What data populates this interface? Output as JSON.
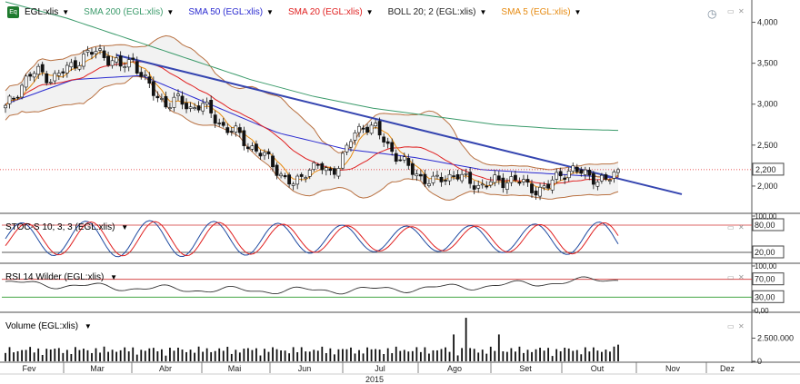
{
  "header": {
    "symbol": "EGL:xlis",
    "icon_text": "Eq",
    "indicators": [
      {
        "label": "SMA 200 (EGL:xlis)",
        "color": "#3a9a6a"
      },
      {
        "label": "SMA 50 (EGL:xlis)",
        "color": "#2a2ad0"
      },
      {
        "label": "SMA 20 (EGL:xlis)",
        "color": "#e02020"
      },
      {
        "label": "BOLL 20; 2 (EGL:xlis)",
        "color": "#222222"
      },
      {
        "label": "SMA 5 (EGL:xlis)",
        "color": "#e68a10"
      }
    ]
  },
  "panels": {
    "stoch_label": "STOC-S 10; 3; 3 (EGL:xlis)",
    "rsi_label": "RSI 14 Wilder (EGL:xlis)",
    "volume_label": "Volume (EGL:xlis)"
  },
  "chart_data": [
    {
      "type": "candlestick",
      "title": "EGL:xlis",
      "year_label": "2015",
      "x_months": [
        "Fev",
        "Mar",
        "Abr",
        "Mai",
        "Jun",
        "Jul",
        "Ago",
        "Set",
        "Out",
        "Nov",
        "Dez"
      ],
      "yticks": [
        2000,
        2500,
        3000,
        3500,
        4000
      ],
      "ytick_labels": [
        "2,000",
        "2,500",
        "3,000",
        "3,500",
        "4,000"
      ],
      "ylim": [
        1700,
        4250
      ],
      "last_price": 2200,
      "last_price_label": "2,200",
      "close_series_approx": [
        {
          "month": "Fev",
          "values": [
            2950,
            3150,
            3350,
            3400,
            3300,
            3400
          ]
        },
        {
          "month": "Mar",
          "values": [
            3500,
            3600,
            3650,
            3550,
            3450,
            3550
          ]
        },
        {
          "month": "Abr",
          "values": [
            3300,
            3100,
            3000,
            3050,
            2950,
            3000
          ]
        },
        {
          "month": "Mai",
          "values": [
            2850,
            2700,
            2650,
            2500,
            2400,
            2300
          ]
        },
        {
          "month": "Jun",
          "values": [
            2100,
            2000,
            2200,
            2250,
            2150,
            2300
          ]
        },
        {
          "month": "Jul",
          "values": [
            2600,
            2750,
            2700,
            2500,
            2350,
            2200
          ]
        },
        {
          "month": "Ago",
          "values": [
            2100,
            2050,
            2100,
            2150,
            2050,
            2000
          ]
        },
        {
          "month": "Set",
          "values": [
            2050,
            2050,
            2100,
            2000,
            1950,
            2000
          ]
        },
        {
          "month": "Out",
          "values": [
            2150,
            2200,
            2150,
            2100,
            2050,
            2200
          ]
        }
      ],
      "series": [
        {
          "name": "SMA 200 (EGL:xlis)",
          "color": "#3a9a6a",
          "values": [
            4250,
            4050,
            3800,
            3550,
            3300,
            3100,
            2950,
            2850,
            2750,
            2700,
            2680
          ]
        },
        {
          "name": "SMA 50 (EGL:xlis)",
          "color": "#2a2ad0",
          "values": [
            3000,
            3300,
            3350,
            3000,
            2650,
            2450,
            2350,
            2200,
            2150,
            2100
          ]
        },
        {
          "name": "SMA 20 (EGL:xlis)",
          "color": "#e02020"
        },
        {
          "name": "BOLL 20; 2 (EGL:xlis)",
          "color": "#222222"
        },
        {
          "name": "SMA 5 (EGL:xlis)",
          "color": "#e68a10"
        }
      ]
    },
    {
      "type": "line",
      "title": "STOC-S 10; 3; 3 (EGL:xlis)",
      "yticks": [
        20,
        80,
        100
      ],
      "ytick_labels": [
        "20,00",
        "80,00",
        "100,00"
      ],
      "ylim": [
        0,
        100
      ],
      "levels": [
        20,
        80
      ]
    },
    {
      "type": "line",
      "title": "RSI 14 Wilder (EGL:xlis)",
      "yticks": [
        0,
        30,
        70,
        100
      ],
      "ytick_labels": [
        "0,00",
        "30,00",
        "70,00",
        "100,00"
      ],
      "ylim": [
        0,
        100
      ],
      "levels": [
        30,
        70
      ]
    },
    {
      "type": "bar",
      "title": "Volume (EGL:xlis)",
      "yticks": [
        0,
        2500000
      ],
      "ytick_labels": [
        "0",
        "2.500.000"
      ],
      "ylim": [
        0,
        5000000
      ]
    }
  ]
}
